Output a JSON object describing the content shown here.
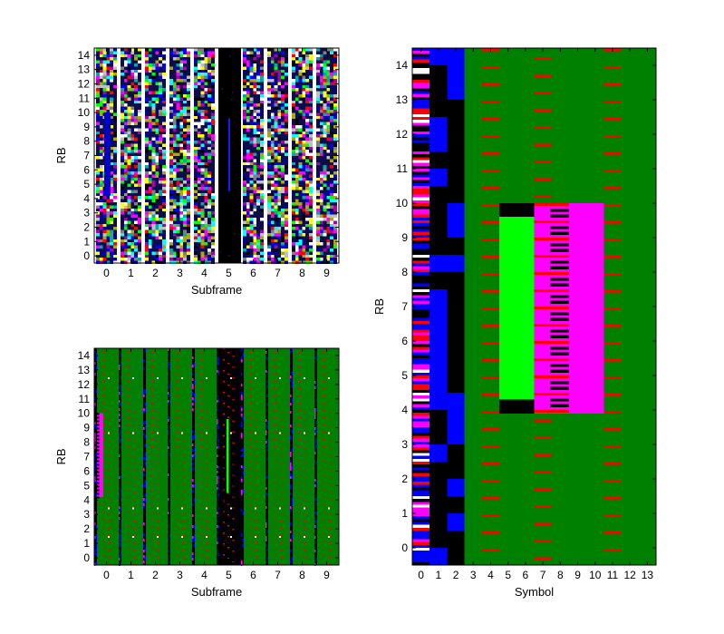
{
  "chart_data": [
    {
      "type": "heatmap",
      "panel": "top-left",
      "content": "random-data resource grid",
      "xlabel": "Subframe",
      "ylabel": "RB",
      "xticks": [
        "0",
        "1",
        "2",
        "3",
        "4",
        "5",
        "6",
        "7",
        "8",
        "9"
      ],
      "yticks": [
        "0",
        "1",
        "2",
        "3",
        "4",
        "5",
        "6",
        "7",
        "8",
        "9",
        "10",
        "11",
        "12",
        "13",
        "14"
      ],
      "xlim": [
        -0.5,
        9.5
      ],
      "ylim": [
        -0.5,
        14.5
      ],
      "x_units_per_subframe": 1,
      "blank_subframe": 5,
      "highlight_segments": [
        {
          "subframe": 0,
          "x_offset": 0.04,
          "rb_from": 4.2,
          "rb_to": 10.0,
          "color": "#0000cc",
          "width": 0.25
        },
        {
          "subframe": 5,
          "x_offset": 0.02,
          "rb_from": 4.5,
          "rb_to": 9.6,
          "color": "#1a1aff",
          "width": 0.06
        }
      ]
    },
    {
      "type": "heatmap",
      "panel": "bottom-left",
      "content": "resource grid by channel",
      "xlabel": "Subframe",
      "ylabel": "RB",
      "xticks": [
        "0",
        "1",
        "2",
        "3",
        "4",
        "5",
        "6",
        "7",
        "8",
        "9"
      ],
      "yticks": [
        "0",
        "1",
        "2",
        "3",
        "4",
        "5",
        "6",
        "7",
        "8",
        "9",
        "10",
        "11",
        "12",
        "13",
        "14"
      ],
      "xlim": [
        -0.5,
        9.5
      ],
      "ylim": [
        -0.5,
        14.5
      ],
      "background": "#008000",
      "special_subframe": 5,
      "pdsch_block": {
        "subframe": 0,
        "rb_from": 4.2,
        "rb_to": 10.0,
        "color": "#ff00ff"
      },
      "green_block": {
        "subframe": 5,
        "rb_from": 4.5,
        "rb_to": 9.6,
        "color": "#00ff00"
      }
    },
    {
      "type": "heatmap",
      "panel": "right",
      "content": "single subframe resource grid",
      "xlabel": "Symbol",
      "ylabel": "RB",
      "xticks": [
        "0",
        "1",
        "2",
        "3",
        "4",
        "5",
        "6",
        "7",
        "8",
        "9",
        "10",
        "11",
        "12",
        "13"
      ],
      "yticks": [
        "0",
        "1",
        "2",
        "3",
        "4",
        "5",
        "6",
        "7",
        "8",
        "9",
        "10",
        "11",
        "12",
        "13",
        "14"
      ],
      "xlim": [
        -0.5,
        13.5
      ],
      "ylim": [
        -0.5,
        14.5
      ],
      "background": "#008000",
      "control_region_symbols": [
        0,
        2
      ],
      "reference_symbols": [
        0,
        4,
        7,
        11
      ],
      "control_cell_colors": [
        "#ff00ff",
        "#ff0000",
        "#0000ff",
        "#ffffff",
        "#000000"
      ],
      "pss_sss_region": {
        "symbol_from": 4.5,
        "symbol_to": 6.5,
        "rb_from": 3.9,
        "rb_to": 10.0,
        "color": "#00ff00",
        "border": "#000000"
      },
      "pbch_region": {
        "symbol_from": 6.5,
        "symbol_to": 8.5,
        "rb_from": 3.9,
        "rb_to": 10.0,
        "color": "#ff00ff",
        "stripe": "#000000"
      },
      "pdsch_region": {
        "symbol_from": 8.5,
        "symbol_to": 10.5,
        "rb_from": 3.9,
        "rb_to": 10.0,
        "color": "#ff00ff"
      },
      "colors": {
        "control_blue": "#0000ff",
        "reference_red": "#ff0000",
        "black": "#000000"
      }
    }
  ]
}
